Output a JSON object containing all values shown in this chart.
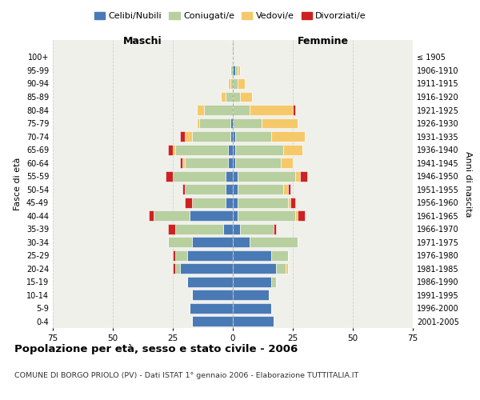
{
  "age_groups": [
    "0-4",
    "5-9",
    "10-14",
    "15-19",
    "20-24",
    "25-29",
    "30-34",
    "35-39",
    "40-44",
    "45-49",
    "50-54",
    "55-59",
    "60-64",
    "65-69",
    "70-74",
    "75-79",
    "80-84",
    "85-89",
    "90-94",
    "95-99",
    "100+"
  ],
  "birth_years": [
    "2001-2005",
    "1996-2000",
    "1991-1995",
    "1986-1990",
    "1981-1985",
    "1976-1980",
    "1971-1975",
    "1966-1970",
    "1961-1965",
    "1956-1960",
    "1951-1955",
    "1946-1950",
    "1941-1945",
    "1936-1940",
    "1931-1935",
    "1926-1930",
    "1921-1925",
    "1916-1920",
    "1911-1915",
    "1906-1910",
    "≤ 1905"
  ],
  "males": {
    "celibi": [
      17,
      18,
      17,
      19,
      22,
      19,
      17,
      4,
      18,
      3,
      3,
      3,
      2,
      2,
      1,
      1,
      0,
      0,
      0,
      0,
      0
    ],
    "coniugati": [
      0,
      0,
      0,
      0,
      2,
      5,
      10,
      20,
      15,
      14,
      17,
      22,
      18,
      22,
      16,
      13,
      12,
      3,
      1,
      1,
      0
    ],
    "vedovi": [
      0,
      0,
      0,
      0,
      0,
      0,
      0,
      0,
      0,
      0,
      0,
      0,
      1,
      1,
      3,
      1,
      3,
      2,
      1,
      0,
      0
    ],
    "divorziati": [
      0,
      0,
      0,
      0,
      1,
      1,
      0,
      3,
      2,
      3,
      1,
      3,
      1,
      2,
      2,
      0,
      0,
      0,
      0,
      0,
      0
    ]
  },
  "females": {
    "nubili": [
      17,
      16,
      15,
      16,
      18,
      16,
      7,
      3,
      2,
      2,
      2,
      2,
      1,
      1,
      1,
      0,
      0,
      0,
      0,
      1,
      0
    ],
    "coniugate": [
      0,
      0,
      0,
      2,
      4,
      7,
      20,
      14,
      24,
      21,
      19,
      24,
      19,
      20,
      15,
      12,
      7,
      3,
      2,
      1,
      0
    ],
    "vedove": [
      0,
      0,
      0,
      0,
      1,
      0,
      0,
      0,
      1,
      1,
      2,
      2,
      5,
      8,
      14,
      15,
      18,
      5,
      3,
      1,
      0
    ],
    "divorziate": [
      0,
      0,
      0,
      0,
      0,
      0,
      0,
      1,
      3,
      2,
      1,
      3,
      0,
      0,
      0,
      0,
      1,
      0,
      0,
      0,
      0
    ]
  },
  "colors": {
    "celibi": "#4a7ab5",
    "coniugati": "#b8cfa0",
    "vedovi": "#f5c96a",
    "divorziati": "#cc2222"
  },
  "title": "Popolazione per età, sesso e stato civile - 2006",
  "subtitle": "COMUNE DI BORGO PRIOLO (PV) - Dati ISTAT 1° gennaio 2006 - Elaborazione TUTTITALIA.IT",
  "xlabel_left": "Maschi",
  "xlabel_right": "Femmine",
  "ylabel_left": "Fasce di età",
  "ylabel_right": "Anni di nascita",
  "xlim": 75,
  "background_color": "#f0f0eb",
  "grid_color": "#cccccc"
}
